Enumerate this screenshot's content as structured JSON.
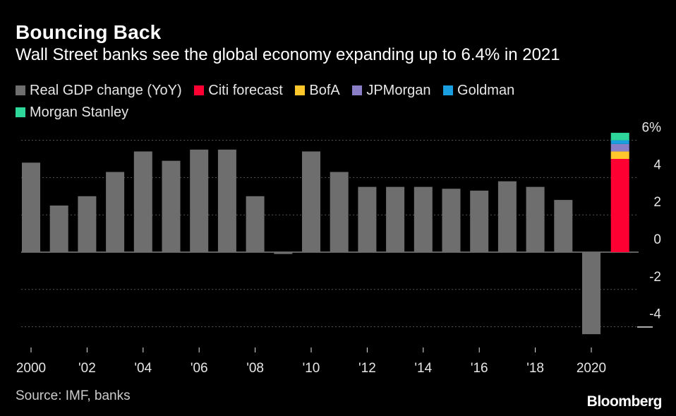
{
  "header": {
    "title": "Bouncing Back",
    "subtitle": "Wall Street banks see the global economy expanding up to 6.4% in 2021"
  },
  "legend": [
    {
      "label": "Real GDP change (YoY)",
      "color": "#6e6e6e"
    },
    {
      "label": "Citi forecast",
      "color": "#ff0033"
    },
    {
      "label": "BofA",
      "color": "#ffc72c"
    },
    {
      "label": "JPMorgan",
      "color": "#8a7fc6"
    },
    {
      "label": "Goldman",
      "color": "#1a9fe0"
    },
    {
      "label": "Morgan Stanley",
      "color": "#2ed89a"
    }
  ],
  "footer": {
    "source": "Source: IMF, banks",
    "brand": "Bloomberg"
  },
  "chart_data": {
    "type": "bar",
    "categories": [
      "2000",
      "2001",
      "2002",
      "2003",
      "2004",
      "2005",
      "2006",
      "2007",
      "2008",
      "2009",
      "2010",
      "2011",
      "2012",
      "2013",
      "2014",
      "2015",
      "2016",
      "2017",
      "2018",
      "2019",
      "2020",
      "2021"
    ],
    "x_tick_labels": [
      "2000",
      "'02",
      "'04",
      "'06",
      "'08",
      "'10",
      "'12",
      "'14",
      "'16",
      "'18",
      "2020"
    ],
    "y_tick_labels": [
      "6%",
      "4",
      "2",
      "0",
      "-2",
      "-4"
    ],
    "ylim": [
      -4.5,
      6.5
    ],
    "y_ticks": [
      6,
      4,
      2,
      0,
      -2,
      -4
    ],
    "grid": true,
    "legend_position": "top-left",
    "series": [
      {
        "name": "Real GDP change (YoY)",
        "color": "#6e6e6e",
        "values": [
          4.8,
          2.5,
          3.0,
          4.3,
          5.4,
          4.9,
          5.5,
          5.5,
          3.0,
          -0.1,
          5.4,
          4.3,
          3.5,
          3.5,
          3.5,
          3.4,
          3.3,
          3.8,
          3.5,
          2.8,
          -4.4,
          null
        ]
      }
    ],
    "forecast_2021": {
      "category": "2021",
      "segments": [
        {
          "name": "Citi forecast",
          "value": 5.0,
          "color": "#ff0033"
        },
        {
          "name": "BofA",
          "value": 0.4,
          "color": "#ffc72c"
        },
        {
          "name": "JPMorgan",
          "value": 0.4,
          "color": "#8a7fc6"
        },
        {
          "name": "Goldman",
          "value": 0.2,
          "color": "#1a9fe0"
        },
        {
          "name": "Morgan Stanley",
          "value": 0.4,
          "color": "#2ed89a"
        }
      ]
    }
  }
}
